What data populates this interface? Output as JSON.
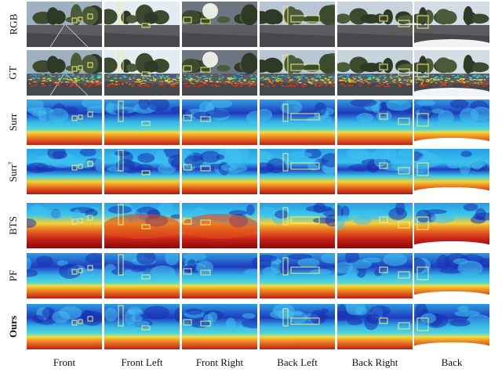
{
  "rows": [
    {
      "id": "rgb",
      "label": "RGB",
      "sup": "",
      "bold": false,
      "kind": "photo"
    },
    {
      "id": "gt",
      "label": "GT",
      "sup": "",
      "bold": false,
      "kind": "gt"
    },
    {
      "id": "surr",
      "label": "Surr",
      "sup": "",
      "bold": false,
      "kind": "depth",
      "style": "smooth"
    },
    {
      "id": "surr-dagger",
      "label": "Surr",
      "sup": "†",
      "bold": false,
      "kind": "depth",
      "style": "noisy"
    },
    {
      "id": "bts",
      "label": "BTS",
      "sup": "",
      "bold": false,
      "kind": "depth",
      "style": "warm"
    },
    {
      "id": "pf",
      "label": "PF",
      "sup": "",
      "bold": false,
      "kind": "depth",
      "style": "smooth"
    },
    {
      "id": "ours",
      "label": "Ours",
      "sup": "",
      "bold": true,
      "kind": "depth",
      "style": "sharp"
    }
  ],
  "columns": [
    {
      "id": "front",
      "label": "Front"
    },
    {
      "id": "front-left",
      "label": "Front Left"
    },
    {
      "id": "front-right",
      "label": "Front Right"
    },
    {
      "id": "back-left",
      "label": "Back Left"
    },
    {
      "id": "back-right",
      "label": "Back Right"
    },
    {
      "id": "back",
      "label": "Back"
    }
  ],
  "colors": {
    "depth_far": "#1a2fb0",
    "depth_mid": "#2aa9e8",
    "depth_near_mid": "#f6e23a",
    "depth_near": "#c81818",
    "highlight_box": "#f2ee7a"
  }
}
